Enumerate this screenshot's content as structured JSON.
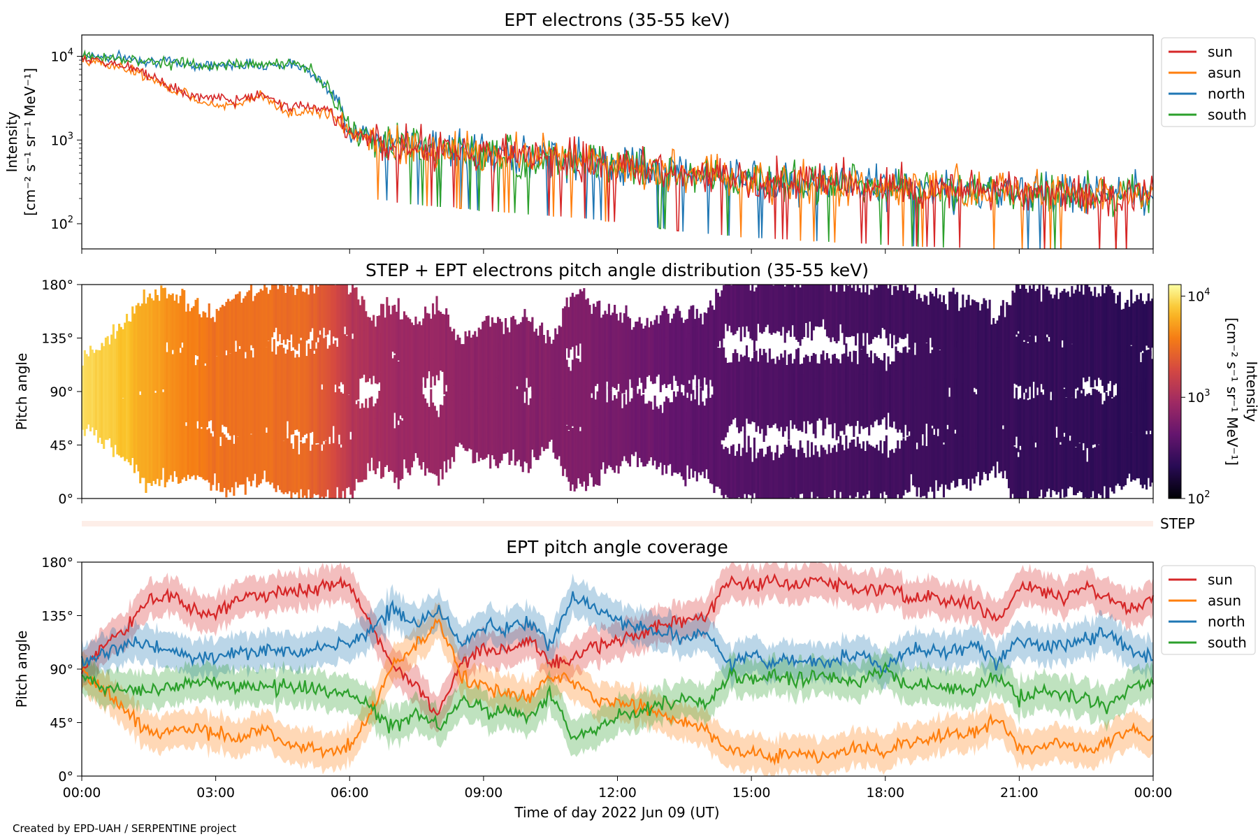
{
  "footer": {
    "credit": "Created by EPD-UAH / SERPENTINE project"
  },
  "colors": {
    "sun": "#d62728",
    "asun": "#ff7f0e",
    "north": "#1f77b4",
    "south": "#2ca02c"
  },
  "chart_data": [
    {
      "type": "line",
      "title": "EPT electrons (35-55 keV)",
      "ylabel_line1": "Intensity",
      "ylabel_line2": "[cm⁻² s⁻¹ sr⁻¹ MeV⁻¹]",
      "yscale": "log",
      "ylim": [
        50,
        18000
      ],
      "yticks": [
        {
          "v": 100,
          "base": "10",
          "exp": "2"
        },
        {
          "v": 1000,
          "base": "10",
          "exp": "3"
        },
        {
          "v": 10000,
          "base": "10",
          "exp": "4"
        }
      ],
      "xlim_hours": [
        0,
        24
      ],
      "legend_position": "upper right, outside",
      "x_hours": [
        0,
        0.5,
        1,
        1.5,
        2,
        2.5,
        3,
        3.5,
        4,
        4.5,
        5,
        5.5,
        6,
        6.5,
        7,
        7.5,
        8,
        8.5,
        9,
        9.5,
        10,
        10.5,
        11,
        11.5,
        12,
        12.5,
        13,
        13.5,
        14,
        14.5,
        15,
        15.5,
        16,
        16.5,
        17,
        17.5,
        18,
        18.5,
        19,
        19.5,
        20,
        20.5,
        21,
        21.5,
        22,
        22.5,
        23,
        23.5,
        24
      ],
      "series": [
        {
          "name": "sun",
          "values": [
            9500,
            8500,
            7500,
            6000,
            4200,
            3300,
            3200,
            3000,
            3500,
            2600,
            2500,
            2300,
            1300,
            1050,
            900,
            850,
            800,
            780,
            700,
            700,
            650,
            620,
            600,
            560,
            520,
            480,
            440,
            400,
            380,
            360,
            340,
            330,
            320,
            310,
            300,
            290,
            280,
            270,
            265,
            260,
            255,
            250,
            245,
            240,
            235,
            230,
            225,
            220,
            215
          ]
        },
        {
          "name": "asun",
          "values": [
            9000,
            8200,
            7200,
            5500,
            4000,
            3100,
            2700,
            2600,
            3300,
            2300,
            2200,
            2100,
            1250,
            1000,
            880,
            830,
            790,
            760,
            690,
            680,
            640,
            610,
            590,
            550,
            510,
            470,
            430,
            395,
            375,
            355,
            335,
            325,
            315,
            305,
            295,
            285,
            275,
            268,
            262,
            258,
            252,
            248,
            242,
            238,
            232,
            228,
            222,
            218,
            212
          ]
        },
        {
          "name": "north",
          "values": [
            10500,
            10000,
            9500,
            9000,
            8500,
            8000,
            7700,
            8000,
            8000,
            8000,
            7500,
            4000,
            1300,
            1050,
            900,
            850,
            800,
            780,
            700,
            700,
            650,
            620,
            600,
            560,
            520,
            480,
            440,
            400,
            380,
            360,
            340,
            330,
            320,
            310,
            300,
            290,
            280,
            270,
            265,
            260,
            255,
            250,
            245,
            240,
            235,
            230,
            225,
            220,
            215
          ]
        },
        {
          "name": "south",
          "values": [
            10000,
            9800,
            9200,
            8800,
            8300,
            7900,
            7600,
            8200,
            8200,
            8300,
            7700,
            3800,
            1280,
            1040,
            890,
            840,
            795,
            770,
            695,
            690,
            645,
            615,
            595,
            555,
            515,
            475,
            435,
            398,
            378,
            358,
            338,
            328,
            318,
            308,
            298,
            288,
            278,
            268,
            263,
            258,
            253,
            248,
            243,
            238,
            233,
            228,
            223,
            218,
            213
          ]
        }
      ]
    },
    {
      "type": "heatmap",
      "title": "STEP + EPT electrons pitch angle distribution (35-55 keV)",
      "ylabel": "Pitch angle",
      "yticks": [
        "0°",
        "45°",
        "90°",
        "135°",
        "180°"
      ],
      "ylim": [
        0,
        180
      ],
      "xlim_hours": [
        0,
        24
      ],
      "colorbar": {
        "label_line1": "Intensity",
        "label_line2": "[cm⁻² s⁻¹ sr⁻¹ MeV⁻¹]",
        "scale": "log",
        "range": [
          100,
          13000
        ],
        "ticks": [
          {
            "v": 100,
            "base": "10",
            "exp": "2"
          },
          {
            "v": 1000,
            "base": "10",
            "exp": "3"
          },
          {
            "v": 10000,
            "base": "10",
            "exp": "4"
          }
        ],
        "colormap": "inferno"
      },
      "step_strip_label": "STEP",
      "x_hours": [
        0,
        1,
        2,
        3,
        4,
        5,
        6,
        7,
        8,
        9,
        10,
        11,
        12,
        13,
        14,
        15,
        16,
        17,
        18,
        19,
        20,
        21,
        22,
        23,
        24
      ],
      "intensity": [
        9500,
        7000,
        4500,
        3300,
        3200,
        3000,
        1200,
        870,
        800,
        700,
        650,
        600,
        520,
        440,
        380,
        340,
        320,
        300,
        280,
        265,
        255,
        245,
        235,
        225,
        215
      ]
    },
    {
      "type": "line",
      "title": "EPT pitch angle coverage",
      "ylabel": "Pitch angle",
      "xlabel": "Time of day 2022 Jun 09 (UT)",
      "yticks": [
        "0°",
        "45°",
        "90°",
        "135°",
        "180°"
      ],
      "ylim": [
        0,
        180
      ],
      "xlim_hours": [
        0,
        24
      ],
      "xticks": [
        "00:00",
        "03:00",
        "06:00",
        "09:00",
        "12:00",
        "15:00",
        "18:00",
        "21:00",
        "00:00"
      ],
      "legend_position": "upper right, outside",
      "band": "±15° shaded around each series",
      "x_hours": [
        0,
        0.5,
        1,
        1.5,
        2,
        2.5,
        3,
        3.5,
        4,
        4.5,
        5,
        5.5,
        6,
        6.5,
        7,
        7.5,
        8,
        8.5,
        9,
        9.5,
        10,
        10.5,
        11,
        11.5,
        12,
        12.5,
        13,
        13.5,
        14,
        14.5,
        15,
        15.5,
        16,
        16.5,
        17,
        17.5,
        18,
        18.5,
        19,
        19.5,
        20,
        20.5,
        21,
        21.5,
        22,
        22.5,
        23,
        23.5,
        24
      ],
      "series": [
        {
          "name": "sun",
          "values": [
            90,
            110,
            125,
            150,
            150,
            140,
            135,
            150,
            150,
            155,
            155,
            160,
            160,
            125,
            90,
            75,
            50,
            95,
            105,
            105,
            115,
            95,
            95,
            110,
            115,
            120,
            130,
            130,
            135,
            165,
            160,
            165,
            160,
            165,
            160,
            155,
            160,
            150,
            150,
            145,
            145,
            130,
            160,
            155,
            150,
            160,
            150,
            140,
            150
          ]
        },
        {
          "name": "asun",
          "values": [
            90,
            70,
            55,
            35,
            40,
            40,
            35,
            30,
            40,
            30,
            25,
            20,
            25,
            55,
            95,
            110,
            130,
            85,
            75,
            70,
            65,
            85,
            80,
            65,
            60,
            60,
            50,
            45,
            40,
            20,
            20,
            15,
            20,
            15,
            20,
            25,
            20,
            30,
            30,
            35,
            35,
            50,
            20,
            25,
            30,
            20,
            30,
            40,
            30
          ]
        },
        {
          "name": "north",
          "values": [
            95,
            105,
            110,
            110,
            105,
            100,
            100,
            105,
            105,
            105,
            105,
            110,
            110,
            125,
            140,
            125,
            140,
            110,
            125,
            125,
            130,
            110,
            150,
            140,
            130,
            125,
            120,
            115,
            120,
            95,
            100,
            95,
            100,
            95,
            100,
            100,
            90,
            105,
            105,
            105,
            110,
            95,
            115,
            110,
            110,
            115,
            120,
            105,
            100
          ]
        },
        {
          "name": "south",
          "values": [
            85,
            75,
            70,
            70,
            75,
            80,
            80,
            75,
            75,
            75,
            75,
            70,
            70,
            55,
            40,
            55,
            40,
            65,
            55,
            55,
            50,
            70,
            30,
            40,
            50,
            55,
            60,
            65,
            60,
            85,
            80,
            85,
            80,
            85,
            80,
            80,
            90,
            75,
            75,
            75,
            70,
            85,
            65,
            70,
            70,
            65,
            60,
            75,
            80
          ]
        }
      ]
    }
  ]
}
